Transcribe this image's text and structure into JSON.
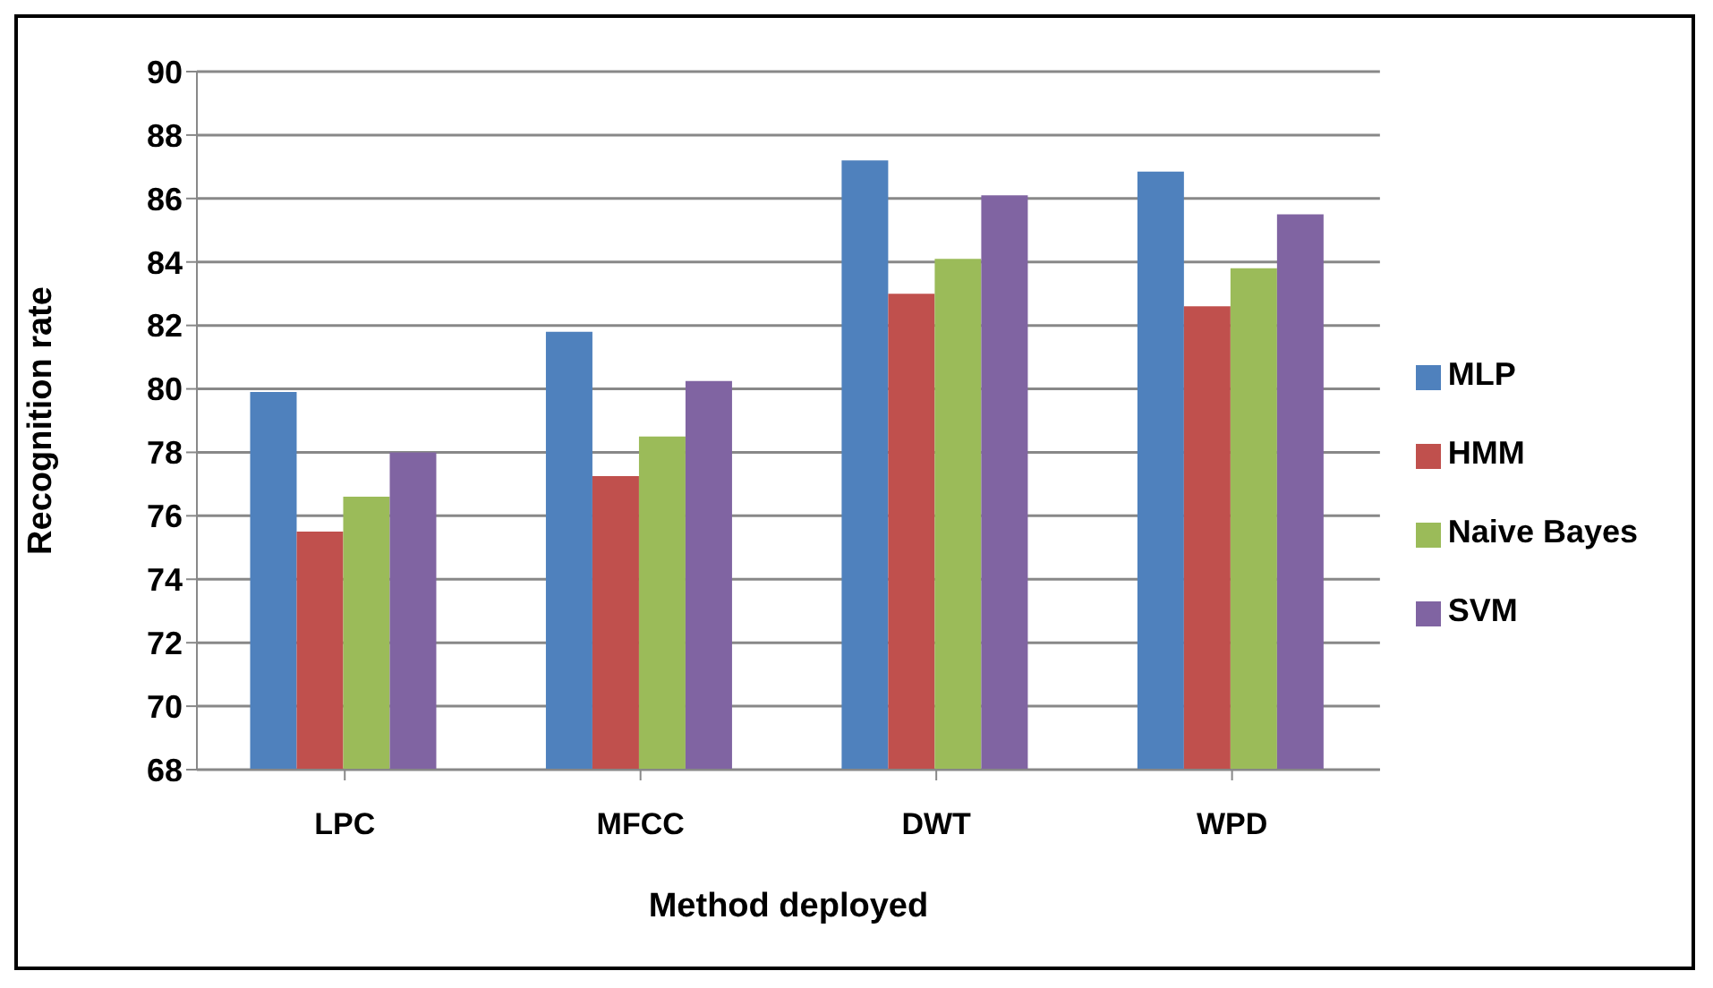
{
  "chart_data": {
    "type": "bar",
    "xlabel": "Method deployed",
    "ylabel": "Recognition rate",
    "categories": [
      "LPC",
      "MFCC",
      "DWT",
      "WPD"
    ],
    "series": [
      {
        "name": "MLP",
        "color": "#4f81bd",
        "values": [
          79.9,
          81.8,
          87.2,
          86.85
        ]
      },
      {
        "name": "HMM",
        "color": "#c0504d",
        "values": [
          75.5,
          77.25,
          83.0,
          82.6
        ]
      },
      {
        "name": "Naive Bayes",
        "color": "#9bbb59",
        "values": [
          76.6,
          78.5,
          84.1,
          83.8
        ]
      },
      {
        "name": "SVM",
        "color": "#8064a2",
        "values": [
          78.0,
          80.25,
          86.1,
          85.5
        ]
      }
    ],
    "ylim": [
      68,
      90
    ],
    "yticks": [
      68,
      70,
      72,
      74,
      76,
      78,
      80,
      82,
      84,
      86,
      88,
      90
    ],
    "grid": "y",
    "legend": "right"
  }
}
